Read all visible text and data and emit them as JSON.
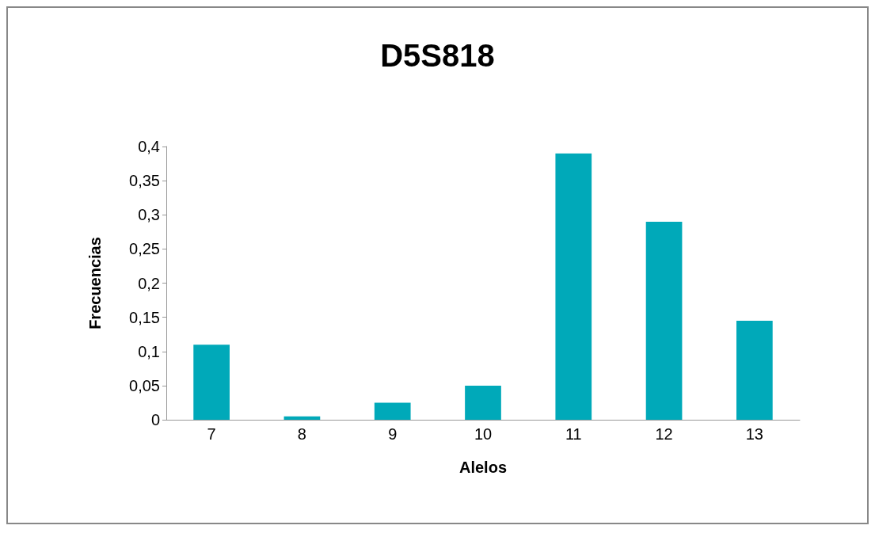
{
  "chart_data": {
    "type": "bar",
    "title": "D5S818",
    "xlabel": "Alelos",
    "ylabel": "Frecuencias",
    "categories": [
      "7",
      "8",
      "9",
      "10",
      "11",
      "12",
      "13"
    ],
    "values": [
      0.11,
      0.005,
      0.025,
      0.05,
      0.39,
      0.29,
      0.145
    ],
    "color": "#00a9b9",
    "ylim": [
      0,
      0.4
    ],
    "yticks": [
      0,
      {
        "value": 0.05,
        "label": "0,05"
      },
      {
        "value": 0.1,
        "label": "0,1"
      },
      {
        "value": 0.15,
        "label": "0,15"
      },
      {
        "value": 0.2,
        "label": "0,2"
      },
      {
        "value": 0.25,
        "label": "0,25"
      },
      {
        "value": 0.3,
        "label": "0,3"
      },
      {
        "value": 0.35,
        "label": "0,35"
      },
      {
        "value": 0.4,
        "label": "0,4"
      }
    ],
    "grid": false
  }
}
